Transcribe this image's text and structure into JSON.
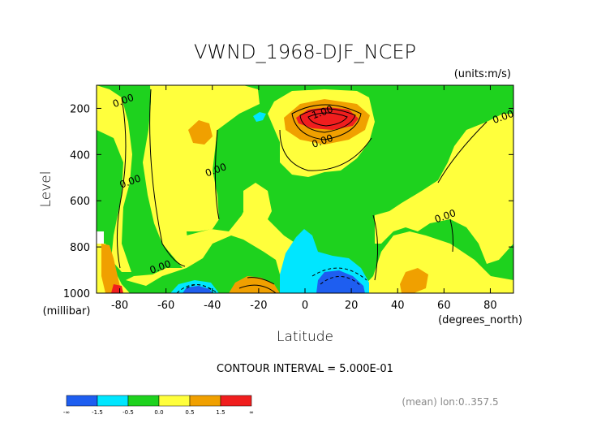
{
  "chart_data": {
    "type": "heatmap",
    "title": "VWND_1968-DJF_NCEP",
    "units_label": "(units:m/s)",
    "xlabel": "Latitude",
    "x_units_label": "(degrees_north)",
    "ylabel": "Level",
    "y_units_label": "(millibar)",
    "x_ticks": [
      -80,
      -60,
      -40,
      -20,
      0,
      20,
      40,
      60,
      80
    ],
    "x_tick_labels": [
      "-80",
      "-60",
      "-40",
      "-20",
      "0",
      "20",
      "40",
      "60",
      "80"
    ],
    "y_ticks": [
      200,
      400,
      600,
      800,
      1000
    ],
    "y_tick_labels": [
      "200",
      "400",
      "600",
      "800",
      "1000"
    ],
    "xlim": [
      -90,
      90
    ],
    "ylim": [
      1000,
      100
    ],
    "contour_interval_text": "CONTOUR INTERVAL = 5.000E-01",
    "mean_text": "(mean) lon:0..357.5",
    "contour_labels": [
      {
        "text": "0.00",
        "x": -78,
        "y": 180
      },
      {
        "text": "0.00",
        "x": -75,
        "y": 530
      },
      {
        "text": "0.00",
        "x": -38,
        "y": 480
      },
      {
        "text": "0.00",
        "x": -62,
        "y": 900
      },
      {
        "text": "1.00",
        "x": 8,
        "y": 230
      },
      {
        "text": "0.00",
        "x": 8,
        "y": 355
      },
      {
        "text": "0.00",
        "x": 61,
        "y": 680
      },
      {
        "text": "0.00",
        "x": 86,
        "y": 250
      }
    ],
    "colorbar": {
      "colors": [
        "#1e5ef0",
        "#00e6ff",
        "#1ed21e",
        "#ffff3c",
        "#f0a000",
        "#f01e1e"
      ],
      "tick_labels": [
        "-∞",
        "-1.5",
        "-0.5",
        "0.0",
        "0.5",
        "1.5",
        "∞"
      ]
    }
  }
}
